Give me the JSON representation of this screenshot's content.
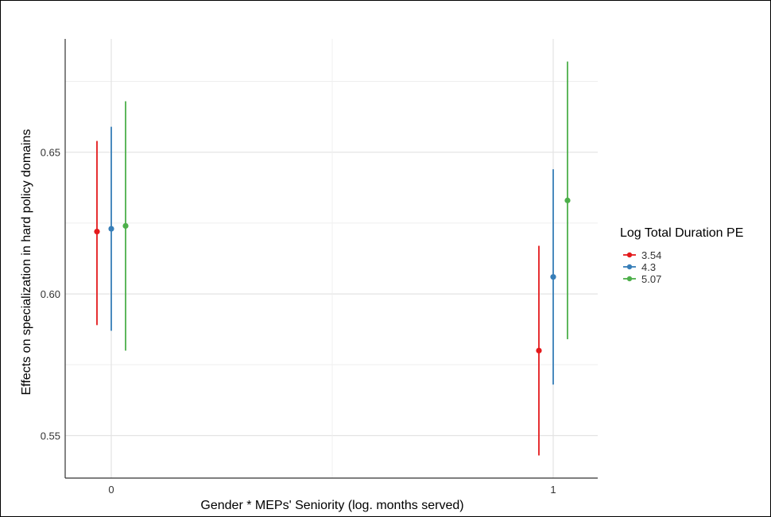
{
  "chart_data": {
    "type": "errorbar",
    "title": "",
    "xlabel": "Gender * MEPs' Seniority (log. months served)",
    "ylabel": "Effects on specialization in hard policy domains",
    "categories": [
      "0",
      "1"
    ],
    "y_ticks": [
      "0.55",
      "0.60",
      "0.65"
    ],
    "ylim": [
      0.535,
      0.69
    ],
    "grid": true,
    "legend": {
      "title": "Log Total Duration PE",
      "position": "right",
      "entries": [
        "3.54",
        "4.3",
        "5.07"
      ]
    },
    "series": [
      {
        "name": "3.54",
        "color": "#e41a1c",
        "points": [
          {
            "x": "0",
            "y": 0.622,
            "low": 0.589,
            "high": 0.654
          },
          {
            "x": "1",
            "y": 0.58,
            "low": 0.543,
            "high": 0.617
          }
        ]
      },
      {
        "name": "4.3",
        "color": "#377eb8",
        "points": [
          {
            "x": "0",
            "y": 0.623,
            "low": 0.587,
            "high": 0.659
          },
          {
            "x": "1",
            "y": 0.606,
            "low": 0.568,
            "high": 0.644
          }
        ]
      },
      {
        "name": "5.07",
        "color": "#4daf4a",
        "points": [
          {
            "x": "0",
            "y": 0.624,
            "low": 0.58,
            "high": 0.668
          },
          {
            "x": "1",
            "y": 0.633,
            "low": 0.584,
            "high": 0.682
          }
        ]
      }
    ]
  }
}
